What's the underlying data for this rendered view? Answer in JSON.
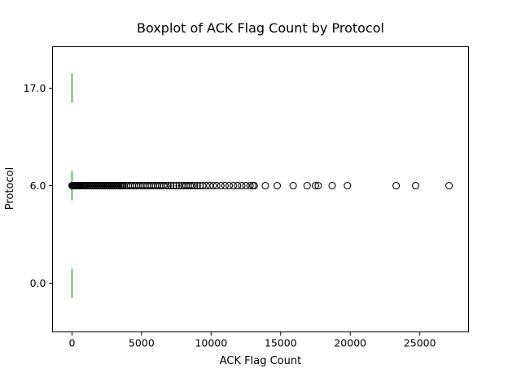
{
  "chart_data": {
    "type": "boxplot",
    "orientation": "horizontal",
    "title": "Boxplot of ACK Flag Count by Protocol",
    "xlabel": "ACK Flag Count",
    "ylabel": "Protocol",
    "xlim": [
      -1400,
      28500
    ],
    "xticks": [
      0,
      5000,
      10000,
      15000,
      20000,
      25000
    ],
    "xtick_labels": [
      "0",
      "5000",
      "10000",
      "15000",
      "20000",
      "25000"
    ],
    "categories": [
      "0.0",
      "6.0",
      "17.0"
    ],
    "grid": false,
    "series": [
      {
        "name": "0.0",
        "q1": 0,
        "median": 0,
        "q3": 0,
        "whisker_low": 0,
        "whisker_high": 0,
        "outliers": []
      },
      {
        "name": "6.0",
        "q1": 0,
        "median": 0,
        "q3": 0,
        "whisker_low": 0,
        "whisker_high": 0,
        "outliers": [
          10,
          20,
          40,
          60,
          90,
          120,
          160,
          200,
          250,
          300,
          360,
          420,
          480,
          550,
          620,
          700,
          780,
          860,
          950,
          1050,
          1150,
          1250,
          1350,
          1450,
          1550,
          1650,
          1750,
          1850,
          1950,
          2050,
          2150,
          2250,
          2350,
          2450,
          2550,
          2650,
          2750,
          2850,
          2950,
          3050,
          3150,
          3250,
          3350,
          3450,
          3550,
          3650,
          3750,
          3900,
          4050,
          4200,
          4350,
          4500,
          4650,
          4800,
          4950,
          5100,
          5250,
          5400,
          5550,
          5700,
          5850,
          6000,
          6150,
          6300,
          6450,
          6600,
          6750,
          6900,
          7100,
          7300,
          7500,
          7700,
          7900,
          8050,
          8200,
          8350,
          8500,
          8650,
          8800,
          9000,
          9200,
          9400,
          9650,
          9900,
          10150,
          10400,
          10700,
          11000,
          11300,
          11600,
          11900,
          12200,
          12500,
          12800,
          13000,
          13100,
          13900,
          14750,
          15900,
          16900,
          17500,
          17700,
          18700,
          19800,
          23300,
          24700,
          27100
        ]
      },
      {
        "name": "17.0",
        "q1": 0,
        "median": 0,
        "q3": 0,
        "whisker_low": 0,
        "whisker_high": 0,
        "outliers": []
      }
    ]
  }
}
